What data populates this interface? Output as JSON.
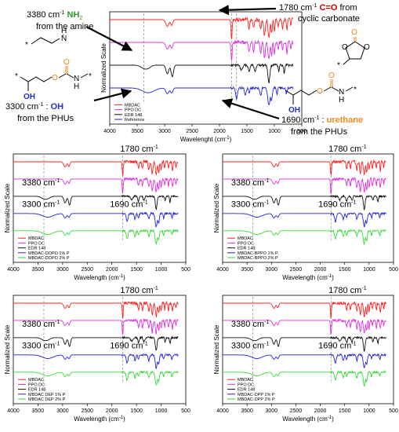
{
  "colors": {
    "red": "#ff2020",
    "magenta": "#dd33dd",
    "black": "#111111",
    "blue": "#2222dd",
    "green": "#33dd33",
    "gray": "#999999",
    "amine": "#2e9a2e",
    "carbonyl": "#cc0000",
    "oh": "#2030c0",
    "urethane": "#f28a1a"
  },
  "annotations": {
    "nh2_wavenumber": "3380 cm",
    "nh2_group": "NH",
    "nh2_source": "from the amine",
    "co_wavenumber": "1780 cm",
    "co_group": "C=O",
    "co_from": " from",
    "co_source": "cyclic carbonate",
    "oh_wavenumber": "3300 cm",
    "oh_group": "OH",
    "oh_source": "from the PHUs",
    "urethane_wavenumber": "1690 cm",
    "urethane_group": "urethane",
    "urethane_source": "from the PHUs",
    "sup": "-1",
    "sub2": "2",
    "colon": " : "
  },
  "chem": {
    "star": "*",
    "N": "N",
    "H": "H",
    "O": "O",
    "OH": "OH"
  },
  "chart_data": [
    {
      "type": "line",
      "ylabel": "Normalized Scale",
      "xlabel": "Wavelenght (cm",
      "xlabel_sup": "-1",
      "xlabel_end": ")",
      "xlim": [
        4000,
        500
      ],
      "xticks": [
        4000,
        3500,
        3000,
        2500,
        2000,
        1500,
        1000,
        500
      ],
      "series": [
        {
          "name": "MBDAC",
          "color": "red"
        },
        {
          "name": "PPO DC",
          "color": "magenta"
        },
        {
          "name": "EDR 148",
          "color": "black"
        },
        {
          "name": "Reference",
          "color": "blue"
        }
      ],
      "markers": [
        3380,
        1780,
        1690
      ],
      "labels": []
    },
    {
      "type": "line",
      "ylabel": "Normalized Scale",
      "xlabel": "Wavelength (cm",
      "xlabel_sup": "-1",
      "xlabel_end": ")",
      "xlim": [
        4000,
        500
      ],
      "xticks": [
        4000,
        3500,
        3000,
        2500,
        2000,
        1500,
        1000,
        500
      ],
      "series": [
        {
          "name": "MBDAC",
          "color": "red"
        },
        {
          "name": "PPO DC",
          "color": "magenta"
        },
        {
          "name": "EDR 148",
          "color": "black"
        },
        {
          "name": "MBDAC-DOPO 1% P",
          "color": "blue"
        },
        {
          "name": "MBDAC-DOPO 2% P",
          "color": "green"
        }
      ],
      "markers": [
        3380,
        1780
      ],
      "labels": [
        "1780 cm",
        "3380 cm",
        "3300 cm",
        "1690 cm"
      ]
    },
    {
      "type": "line",
      "ylabel": "Normalized Scale",
      "xlabel": "Wavelength (cm",
      "xlabel_sup": "-1",
      "xlabel_end": ")",
      "xlim": [
        4000,
        500
      ],
      "xticks": [
        4000,
        3500,
        3000,
        2500,
        2000,
        1500,
        1000,
        500
      ],
      "series": [
        {
          "name": "MBDAC",
          "color": "red"
        },
        {
          "name": "PPO DC",
          "color": "magenta"
        },
        {
          "name": "EDR 148",
          "color": "black"
        },
        {
          "name": "MBDAC-BPPO 1% P",
          "color": "blue"
        },
        {
          "name": "MBDAC-BPPO 2% P",
          "color": "green"
        }
      ],
      "markers": [
        3380,
        1780
      ],
      "labels": [
        "1780 cm",
        "3380 cm",
        "3300 cm",
        "1690 cm"
      ]
    },
    {
      "type": "line",
      "ylabel": "Normalized Scale",
      "xlabel": "Wavelength (cm",
      "xlabel_sup": "-1",
      "xlabel_end": ")",
      "xlim": [
        4000,
        500
      ],
      "xticks": [
        4000,
        3500,
        3000,
        2500,
        2000,
        1500,
        1000,
        500
      ],
      "series": [
        {
          "name": "MBDAC",
          "color": "red"
        },
        {
          "name": "PPO DC",
          "color": "magenta"
        },
        {
          "name": "EDR 148",
          "color": "black"
        },
        {
          "name": "MBDAC DEP 1% P",
          "color": "blue"
        },
        {
          "name": "MBDAC DEP 2% P",
          "color": "green"
        }
      ],
      "markers": [
        3380,
        1780
      ],
      "labels": [
        "1780 cm",
        "3380 cm",
        "3300 cm",
        "1690 cm"
      ]
    },
    {
      "type": "line",
      "ylabel": "Normalized Scale",
      "xlabel": "Wavelength (cm",
      "xlabel_sup": "-1",
      "xlabel_end": ")",
      "xlim": [
        4000,
        500
      ],
      "xticks": [
        4000,
        3500,
        3000,
        2500,
        2000,
        1500,
        1000,
        500
      ],
      "series": [
        {
          "name": "MBDAC",
          "color": "red"
        },
        {
          "name": "PPO DC",
          "color": "magenta"
        },
        {
          "name": "EDR 148",
          "color": "black"
        },
        {
          "name": "MBDAC-DPP 1% P",
          "color": "blue"
        },
        {
          "name": "MBDAC-DPP 2% P",
          "color": "green"
        }
      ],
      "markers": [
        3380,
        1780
      ],
      "labels": [
        "1780 cm",
        "3380 cm",
        "3300 cm",
        "1690 cm"
      ]
    }
  ]
}
